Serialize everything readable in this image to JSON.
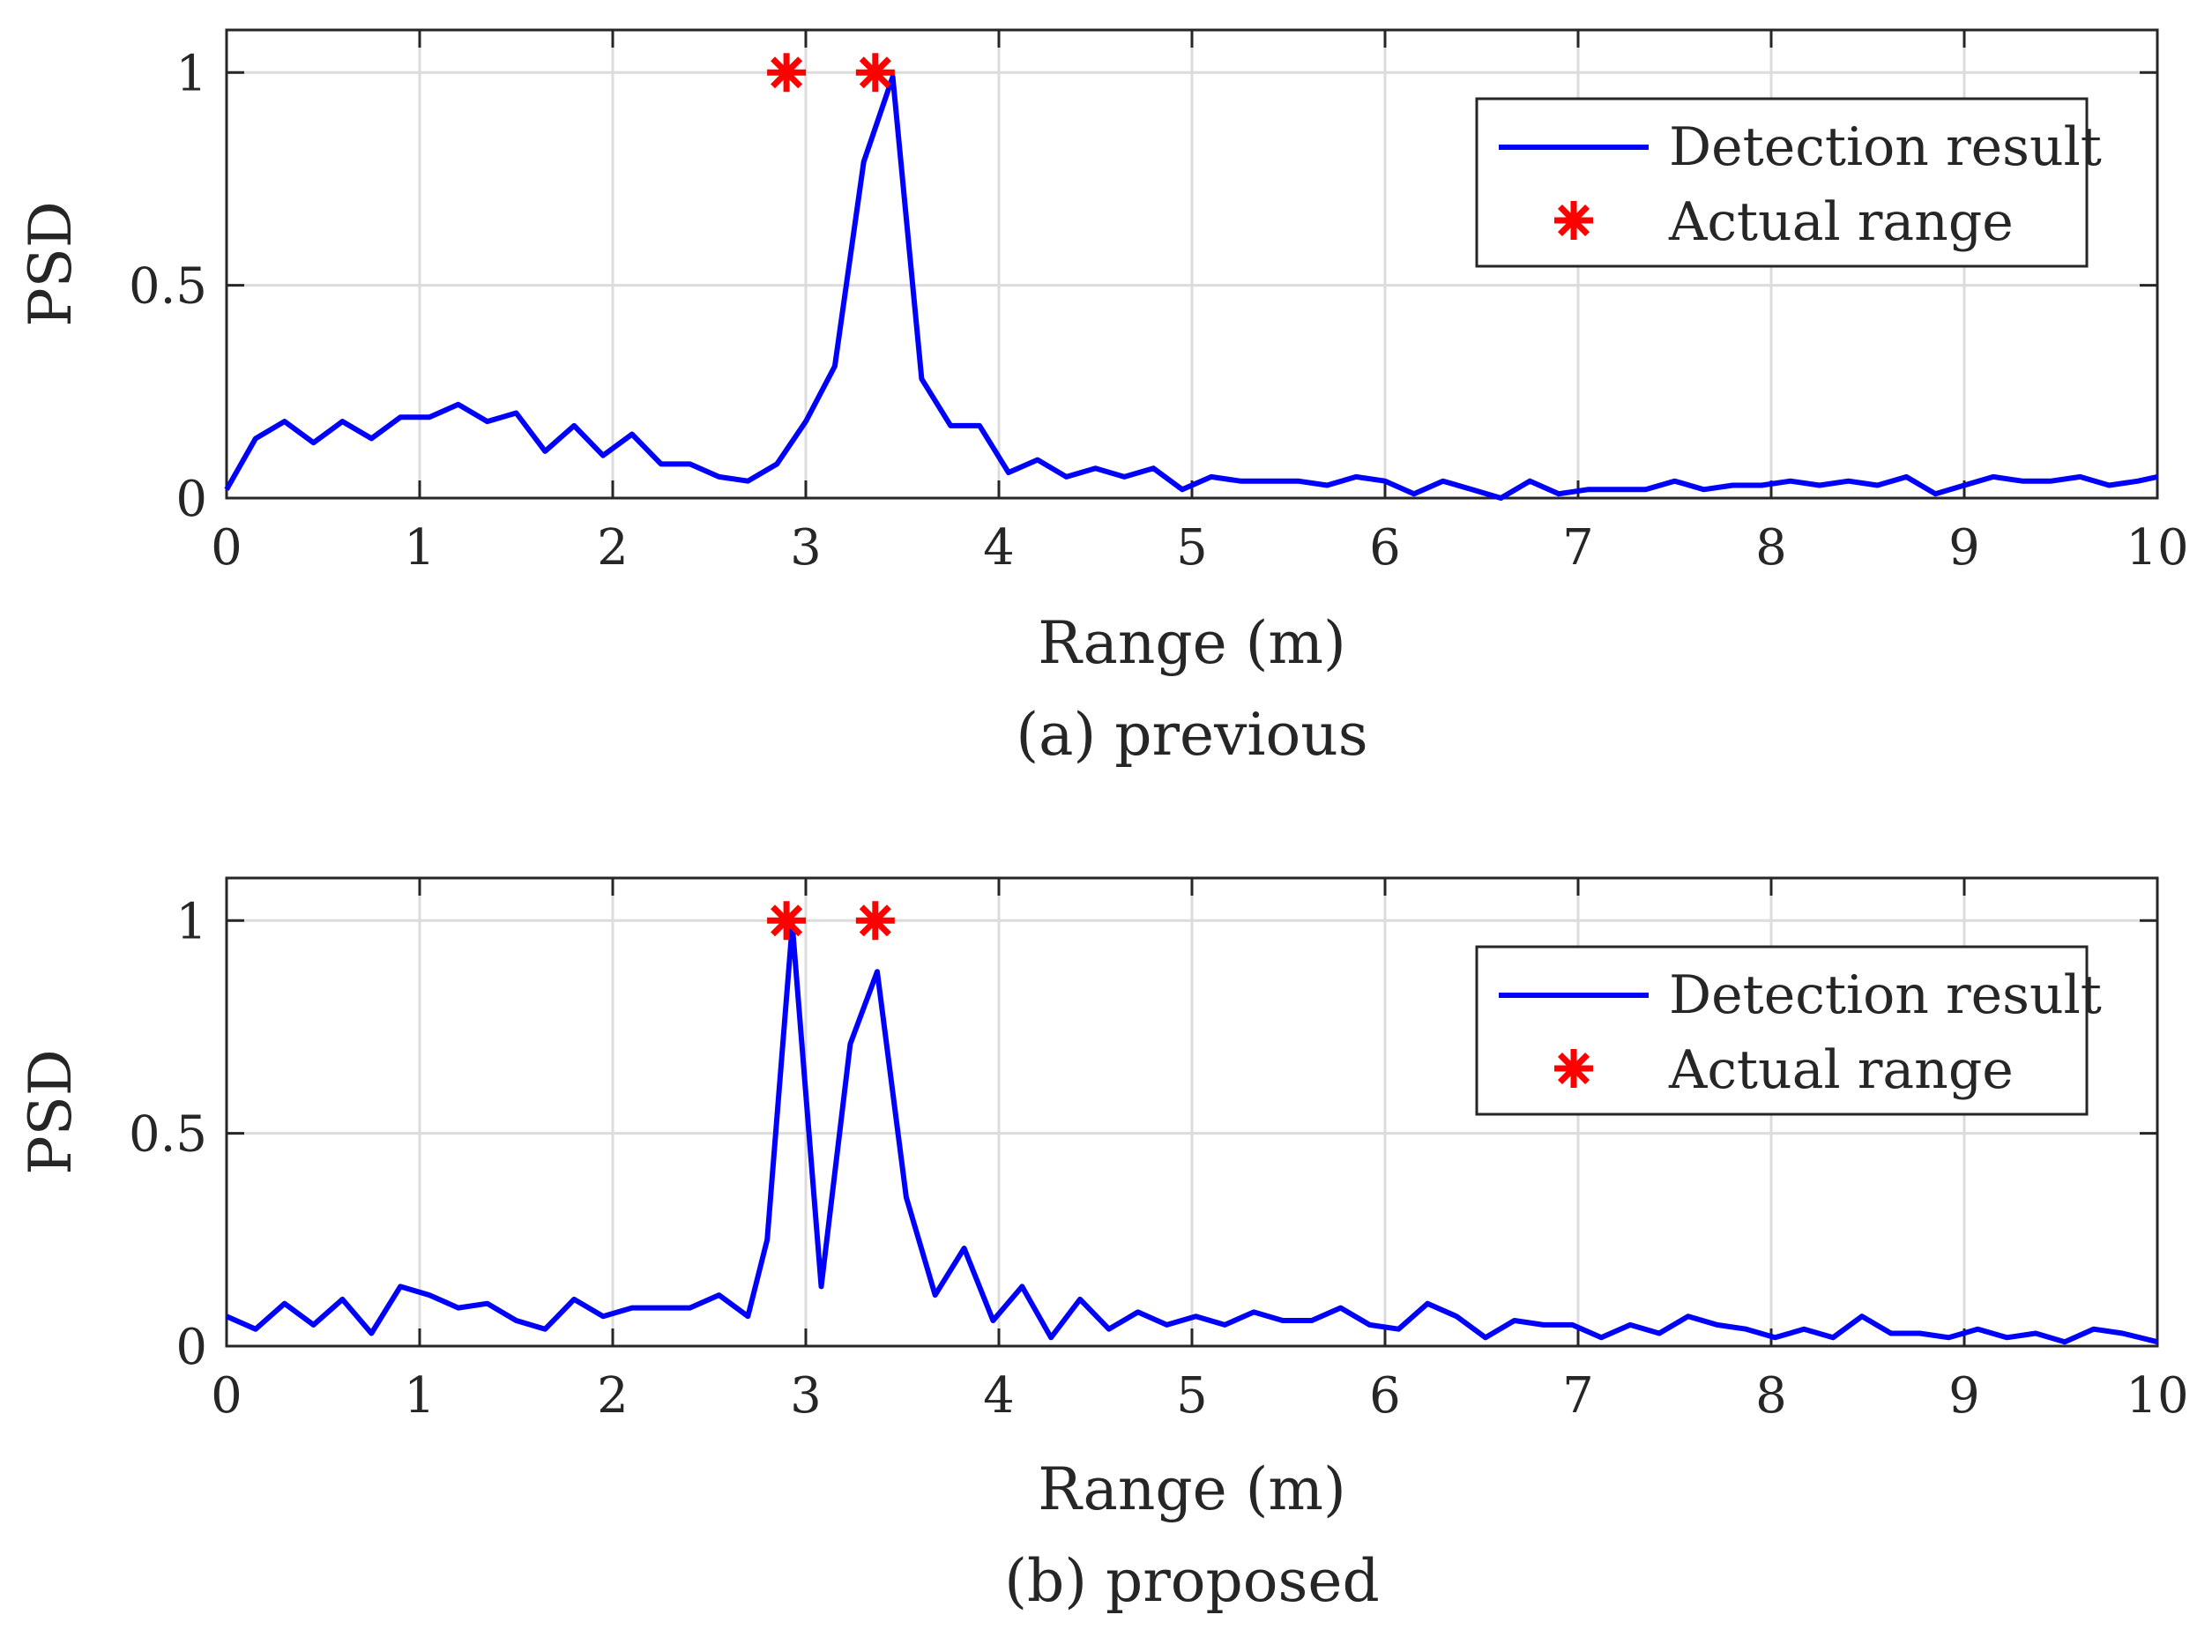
{
  "colors": {
    "line": "#0000ff",
    "marker": "#ff0000",
    "grid": "#dcdcdc",
    "axis": "#262626"
  },
  "chart_data": [
    {
      "type": "line",
      "caption": "(a) previous",
      "xlabel": "Range (m)",
      "ylabel": "PSD",
      "xlim": [
        0,
        10
      ],
      "ylim": [
        0,
        1.1
      ],
      "xticks": [
        0,
        1,
        2,
        3,
        4,
        5,
        6,
        7,
        8,
        9,
        10
      ],
      "xtick_labels": [
        "0",
        "1",
        "2",
        "3",
        "4",
        "5",
        "6",
        "7",
        "8",
        "9",
        "10"
      ],
      "yticks": [
        0,
        0.5,
        1
      ],
      "ytick_labels": [
        "0",
        "0.5",
        "1"
      ],
      "grid": true,
      "legend_position": "top-right",
      "series": [
        {
          "name": "Detection result",
          "style": "line",
          "x": [
            0,
            0.15,
            0.3,
            0.45,
            0.6,
            0.75,
            0.9,
            1.05,
            1.2,
            1.35,
            1.5,
            1.65,
            1.8,
            1.95,
            2.1,
            2.25,
            2.4,
            2.55,
            2.7,
            2.85,
            3.0,
            3.15,
            3.3,
            3.45,
            3.6,
            3.75,
            3.9,
            4.05,
            4.2,
            4.35,
            4.5,
            4.65,
            4.8,
            4.95,
            5.1,
            5.25,
            5.4,
            5.55,
            5.7,
            5.85,
            6.0,
            6.15,
            6.3,
            6.45,
            6.6,
            6.75,
            6.9,
            7.05,
            7.2,
            7.35,
            7.5,
            7.65,
            7.8,
            7.95,
            8.1,
            8.25,
            8.4,
            8.55,
            8.7,
            8.85,
            9.0,
            9.15,
            9.3,
            9.45,
            9.6,
            9.75,
            9.9,
            10.0
          ],
          "values": [
            0.02,
            0.14,
            0.18,
            0.13,
            0.18,
            0.14,
            0.19,
            0.19,
            0.22,
            0.18,
            0.2,
            0.11,
            0.17,
            0.1,
            0.15,
            0.08,
            0.08,
            0.05,
            0.04,
            0.08,
            0.18,
            0.31,
            0.79,
            0.99,
            0.28,
            0.17,
            0.17,
            0.06,
            0.09,
            0.05,
            0.07,
            0.05,
            0.07,
            0.02,
            0.05,
            0.04,
            0.04,
            0.04,
            0.03,
            0.05,
            0.04,
            0.01,
            0.04,
            0.02,
            0.0,
            0.04,
            0.01,
            0.02,
            0.02,
            0.02,
            0.04,
            0.02,
            0.03,
            0.03,
            0.04,
            0.03,
            0.04,
            0.03,
            0.05,
            0.01,
            0.03,
            0.05,
            0.04,
            0.04,
            0.05,
            0.03,
            0.04,
            0.05
          ]
        },
        {
          "name": "Actual range",
          "style": "marker",
          "x": [
            2.9,
            3.36
          ],
          "values": [
            1,
            1
          ]
        }
      ]
    },
    {
      "type": "line",
      "caption": "(b) proposed",
      "xlabel": "Range (m)",
      "ylabel": "PSD",
      "xlim": [
        0,
        10
      ],
      "ylim": [
        0,
        1.1
      ],
      "xticks": [
        0,
        1,
        2,
        3,
        4,
        5,
        6,
        7,
        8,
        9,
        10
      ],
      "xtick_labels": [
        "0",
        "1",
        "2",
        "3",
        "4",
        "5",
        "6",
        "7",
        "8",
        "9",
        "10"
      ],
      "yticks": [
        0,
        0.5,
        1
      ],
      "ytick_labels": [
        "0",
        "0.5",
        "1"
      ],
      "grid": true,
      "legend_position": "top-right",
      "series": [
        {
          "name": "Detection result",
          "style": "line",
          "x": [
            0,
            0.15,
            0.3,
            0.45,
            0.6,
            0.75,
            0.9,
            1.05,
            1.2,
            1.35,
            1.5,
            1.65,
            1.8,
            1.95,
            2.1,
            2.25,
            2.4,
            2.55,
            2.7,
            2.8,
            2.93,
            3.08,
            3.23,
            3.37,
            3.52,
            3.67,
            3.82,
            3.97,
            4.12,
            4.27,
            4.42,
            4.57,
            4.72,
            4.87,
            5.02,
            5.17,
            5.32,
            5.47,
            5.62,
            5.77,
            5.92,
            6.07,
            6.22,
            6.37,
            6.52,
            6.67,
            6.82,
            6.97,
            7.12,
            7.27,
            7.42,
            7.57,
            7.72,
            7.87,
            8.02,
            8.17,
            8.32,
            8.47,
            8.62,
            8.77,
            8.92,
            9.07,
            9.22,
            9.37,
            9.52,
            9.67,
            9.82,
            10.0
          ],
          "values": [
            0.07,
            0.04,
            0.1,
            0.05,
            0.11,
            0.03,
            0.14,
            0.12,
            0.09,
            0.1,
            0.06,
            0.04,
            0.11,
            0.07,
            0.09,
            0.09,
            0.09,
            0.12,
            0.07,
            0.25,
            0.99,
            0.14,
            0.71,
            0.88,
            0.35,
            0.12,
            0.23,
            0.06,
            0.14,
            0.02,
            0.11,
            0.04,
            0.08,
            0.05,
            0.07,
            0.05,
            0.08,
            0.06,
            0.06,
            0.09,
            0.05,
            0.04,
            0.1,
            0.07,
            0.02,
            0.06,
            0.05,
            0.05,
            0.02,
            0.05,
            0.03,
            0.07,
            0.05,
            0.04,
            0.02,
            0.04,
            0.02,
            0.07,
            0.03,
            0.03,
            0.02,
            0.04,
            0.02,
            0.03,
            0.01,
            0.04,
            0.03,
            0.01
          ]
        },
        {
          "name": "Actual range",
          "style": "marker",
          "x": [
            2.9,
            3.36
          ],
          "values": [
            1,
            1
          ]
        }
      ]
    }
  ]
}
